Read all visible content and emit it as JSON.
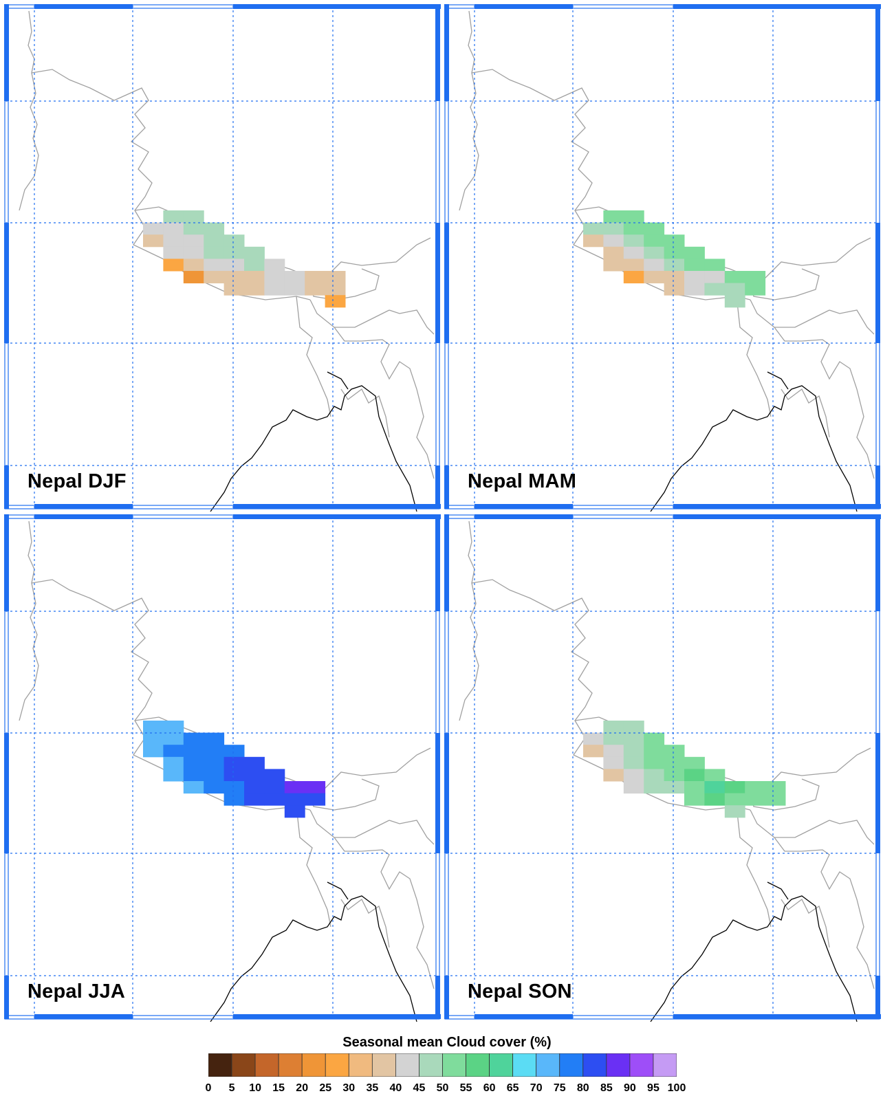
{
  "panels": [
    {
      "id": "djf",
      "label": "Nepal DJF"
    },
    {
      "id": "mam",
      "label": "Nepal MAM"
    },
    {
      "id": "jja",
      "label": "Nepal JJA"
    },
    {
      "id": "son",
      "label": "Nepal SON"
    }
  ],
  "legend": {
    "title": "Seasonal mean Cloud cover (%)",
    "ticks": [
      "0",
      "5",
      "10",
      "15",
      "20",
      "25",
      "30",
      "35",
      "40",
      "45",
      "50",
      "55",
      "60",
      "65",
      "70",
      "75",
      "80",
      "85",
      "90",
      "95",
      "100"
    ],
    "colors": [
      "#45230f",
      "#8a4619",
      "#c4662a",
      "#dd7f33",
      "#ef9537",
      "#fba642",
      "#f0ba7f",
      "#e2c5a3",
      "#d3d3d3",
      "#a9d9bb",
      "#7fdc9c",
      "#5bd385",
      "#4fd39b",
      "#5bdcf4",
      "#59b7fa",
      "#227ef6",
      "#2d4ef2",
      "#6a30f4",
      "#9e4ef8",
      "#c59bf4"
    ]
  }
}
